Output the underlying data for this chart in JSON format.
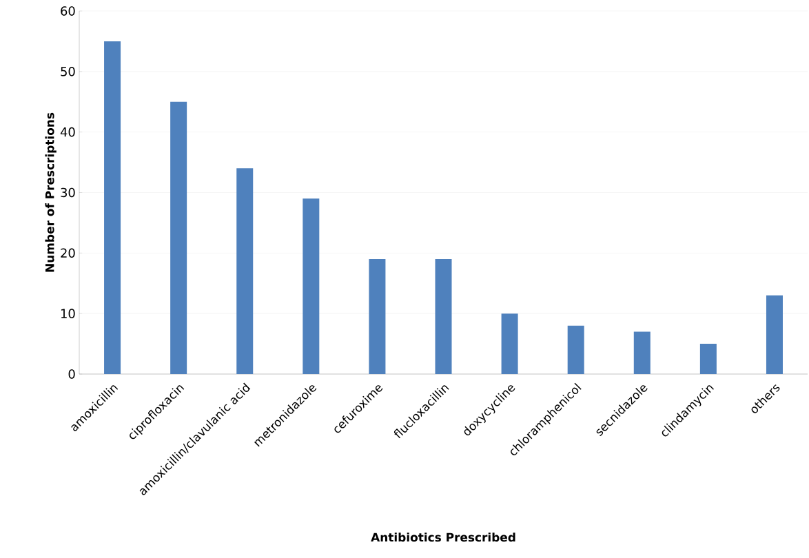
{
  "chart_data": {
    "type": "bar",
    "xlabel": "Antibiotics Prescribed",
    "ylabel": "Number of Prescriptions",
    "categories": [
      "amoxicillin",
      "ciprofloxacin",
      "amoxicillin/clavulanic acid",
      "metronidazole",
      "cefuroxime",
      "flucloxacillin",
      "doxycycline",
      "chloramphenicol",
      "secnidazole",
      "clindamycin",
      "others"
    ],
    "values": [
      55,
      45,
      34,
      29,
      19,
      19,
      10,
      8,
      7,
      5,
      13
    ],
    "color": "#4f81bd",
    "ylim": [
      0,
      60
    ],
    "yticks": [
      0,
      10,
      20,
      30,
      40,
      50,
      60
    ],
    "grid": "y"
  }
}
